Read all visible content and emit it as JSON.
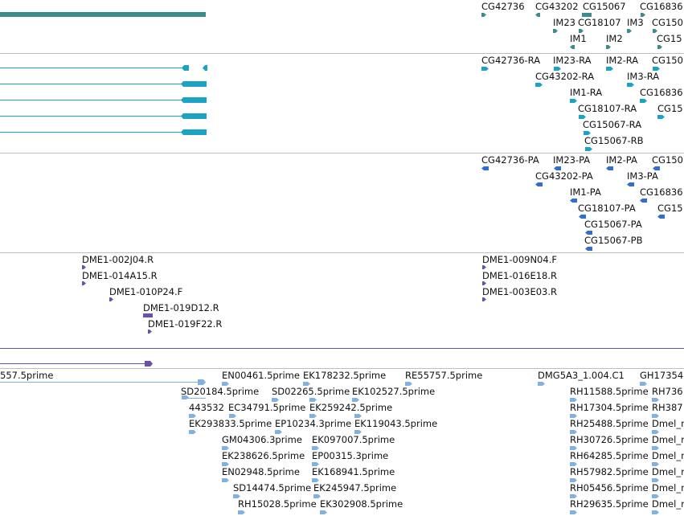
{
  "colors": {
    "gene": "#3d8c8c",
    "mrna": "#1aa3c2",
    "cds": "#2f6fd1",
    "clone": "#6a4fb0",
    "est": "#7fb2e0",
    "divider": "#c0c0c0"
  },
  "tracks": {
    "genes": {
      "labels": [
        "CG42736",
        "CG43202",
        "CG15067",
        "CG16836",
        "IM23",
        "CG18107",
        "IM3",
        "CG150",
        "IM1",
        "IM2",
        "CG15"
      ]
    },
    "transcripts": {
      "labels": [
        "CG42736-RA",
        "IM23-RA",
        "IM2-RA",
        "CG150",
        "CG43202-RA",
        "IM3-RA",
        "IM1-RA",
        "CG16836",
        "CG18107-RA",
        "CG15",
        "CG15067-RA",
        "CG15067-RB"
      ]
    },
    "proteins": {
      "labels": [
        "CG42736-PA",
        "IM23-PA",
        "IM2-PA",
        "CG150",
        "CG43202-PA",
        "IM3-PA",
        "IM1-PA",
        "CG16836",
        "CG18107-PA",
        "CG15",
        "CG15067-PA",
        "CG15067-PB"
      ]
    },
    "clones": {
      "labels": [
        "DME1-002J04.R",
        "DME1-014A15.R",
        "DME1-010P24.F",
        "DME1-019D12.R",
        "DME1-019F22.R",
        "DME1-009N04.F",
        "DME1-016E18.R",
        "DME1-003E03.R"
      ]
    },
    "ests": {
      "labels": [
        "557.5prime",
        "EN00461.5prime",
        "EK178232.5prime",
        "RE55757.5prime",
        "DMG5A3_1.004.C1",
        "GH17354",
        "SD20184.5prime",
        "SD02265.5prime",
        "EK102527.5prime",
        "RH11588.5prime",
        "RH736",
        "443532",
        "EC34791.5prime",
        "EK259242.5prime",
        "RH17304.5prime",
        "RH387",
        "EK293833.5prime",
        "EP10234.3prime",
        "EK119043.5prime",
        "RH25488.5prime",
        "Dmel_r",
        "GM04306.3prime",
        "EK097007.5prime",
        "RH30726.5prime",
        "Dmel_r",
        "EK238626.5prime",
        "EP00315.3prime",
        "RH64285.5prime",
        "Dmel_r",
        "EN02948.5prime",
        "EK168941.5prime",
        "RH57982.5prime",
        "Dmel_r",
        "SD14474.5prime",
        "EK245947.5prime",
        "RH05456.5prime",
        "Dmel_r",
        "RH15028.5prime",
        "EK302908.5prime",
        "RH29635.5prime",
        "Dmel_r"
      ]
    }
  }
}
